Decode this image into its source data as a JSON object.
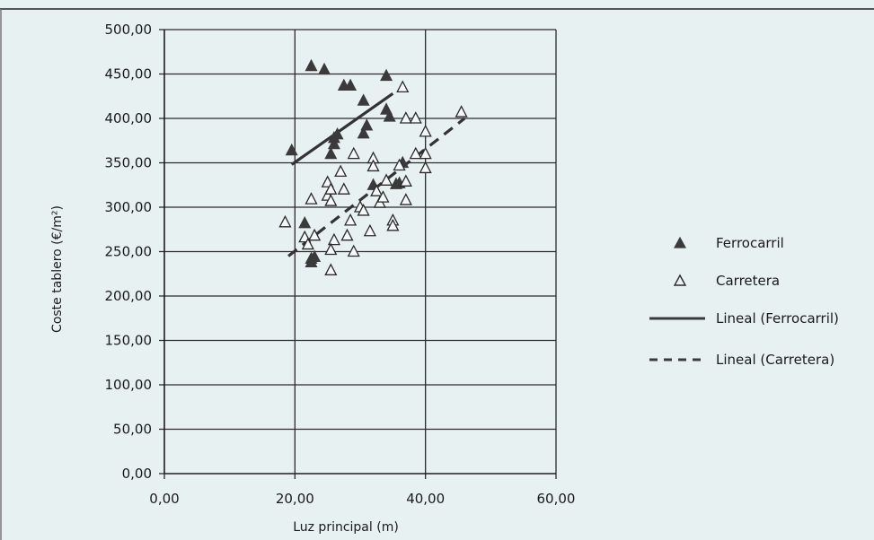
{
  "chart_data": {
    "type": "scatter",
    "title": "",
    "xlabel": "Luz principal (m)",
    "ylabel": "Coste tablero (€/m²)",
    "xlim": [
      0,
      60
    ],
    "ylim": [
      0,
      500
    ],
    "x_ticks": [
      "0,00",
      "20,00",
      "40,00",
      "60,00"
    ],
    "x_tick_values": [
      0,
      20,
      40,
      60
    ],
    "y_ticks": [
      "0,00",
      "50,00",
      "100,00",
      "150,00",
      "200,00",
      "250,00",
      "300,00",
      "350,00",
      "400,00",
      "450,00",
      "500,00"
    ],
    "y_tick_values": [
      0,
      50,
      100,
      150,
      200,
      250,
      300,
      350,
      400,
      450,
      500
    ],
    "grid": true,
    "legend_position": "right",
    "series": [
      {
        "name": "Ferrocarril",
        "marker": "filled-triangle",
        "color": "#3a3a3a",
        "points": [
          [
            19.5,
            364
          ],
          [
            22.5,
            459
          ],
          [
            24.5,
            455
          ],
          [
            21.5,
            282
          ],
          [
            22.5,
            242
          ],
          [
            22.5,
            238
          ],
          [
            23.0,
            244
          ],
          [
            25.5,
            360
          ],
          [
            26.0,
            371
          ],
          [
            26.0,
            378
          ],
          [
            26.5,
            382
          ],
          [
            27.5,
            437
          ],
          [
            28.5,
            437
          ],
          [
            30.5,
            420
          ],
          [
            31.0,
            392
          ],
          [
            30.5,
            383
          ],
          [
            32.0,
            325
          ],
          [
            34.0,
            448
          ],
          [
            34.0,
            410
          ],
          [
            34.5,
            402
          ],
          [
            35.5,
            326
          ],
          [
            36.0,
            327
          ],
          [
            36.5,
            350
          ]
        ]
      },
      {
        "name": "Carretera",
        "marker": "open-triangle",
        "color": "#2a2a2a",
        "points": [
          [
            18.5,
            283
          ],
          [
            21.5,
            266
          ],
          [
            22.0,
            258
          ],
          [
            22.5,
            309
          ],
          [
            23.0,
            268
          ],
          [
            25.0,
            328
          ],
          [
            25.0,
            313
          ],
          [
            25.5,
            320
          ],
          [
            25.5,
            307
          ],
          [
            26.0,
            263
          ],
          [
            25.5,
            252
          ],
          [
            25.5,
            229
          ],
          [
            27.0,
            340
          ],
          [
            27.5,
            320
          ],
          [
            28.0,
            268
          ],
          [
            28.5,
            285
          ],
          [
            29.0,
            360
          ],
          [
            29.0,
            250
          ],
          [
            30.0,
            300
          ],
          [
            30.5,
            296
          ],
          [
            31.5,
            273
          ],
          [
            32.0,
            355
          ],
          [
            32.0,
            346
          ],
          [
            32.5,
            318
          ],
          [
            33.0,
            305
          ],
          [
            33.5,
            311
          ],
          [
            34.0,
            330
          ],
          [
            35.0,
            285
          ],
          [
            35.0,
            279
          ],
          [
            36.0,
            347
          ],
          [
            36.5,
            435
          ],
          [
            37.0,
            400
          ],
          [
            37.0,
            308
          ],
          [
            37.0,
            329
          ],
          [
            38.5,
            400
          ],
          [
            38.5,
            360
          ],
          [
            40.0,
            385
          ],
          [
            40.0,
            360
          ],
          [
            40.0,
            344
          ],
          [
            45.5,
            407
          ]
        ]
      }
    ],
    "trendlines": [
      {
        "name": "Lineal (Ferrocarril)",
        "style": "solid",
        "x": [
          19.5,
          35.0
        ],
        "y": [
          348,
          428
        ]
      },
      {
        "name": "Lineal (Carretera)",
        "style": "dashed",
        "x": [
          19.0,
          46.0
        ],
        "y": [
          245,
          400
        ]
      }
    ]
  }
}
